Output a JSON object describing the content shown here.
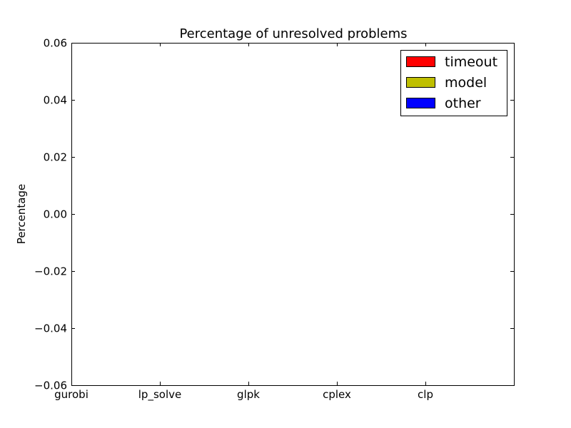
{
  "chart_data": {
    "type": "bar",
    "title": "Percentage of unresolved problems",
    "xlabel": "",
    "ylabel": "Percentage",
    "categories": [
      "gurobi",
      "lp_solve",
      "glpk",
      "cplex",
      "clp"
    ],
    "series": [
      {
        "name": "timeout",
        "color": "#ff0000",
        "values": [
          0,
          0,
          0,
          0,
          0
        ]
      },
      {
        "name": "model",
        "color": "#bfbf00",
        "values": [
          0,
          0,
          0,
          0,
          0
        ]
      },
      {
        "name": "other",
        "color": "#0000ff",
        "values": [
          0,
          0,
          0,
          0,
          0
        ]
      }
    ],
    "stacked": true,
    "ylim": [
      -0.06,
      0.06
    ],
    "yticks": [
      "0.06",
      "0.04",
      "0.02",
      "0.00",
      "−0.02",
      "−0.04",
      "−0.06"
    ],
    "ytick_values": [
      0.06,
      0.04,
      0.02,
      0.0,
      -0.02,
      -0.04,
      -0.06
    ],
    "grid": false,
    "legend_position": "upper right"
  }
}
